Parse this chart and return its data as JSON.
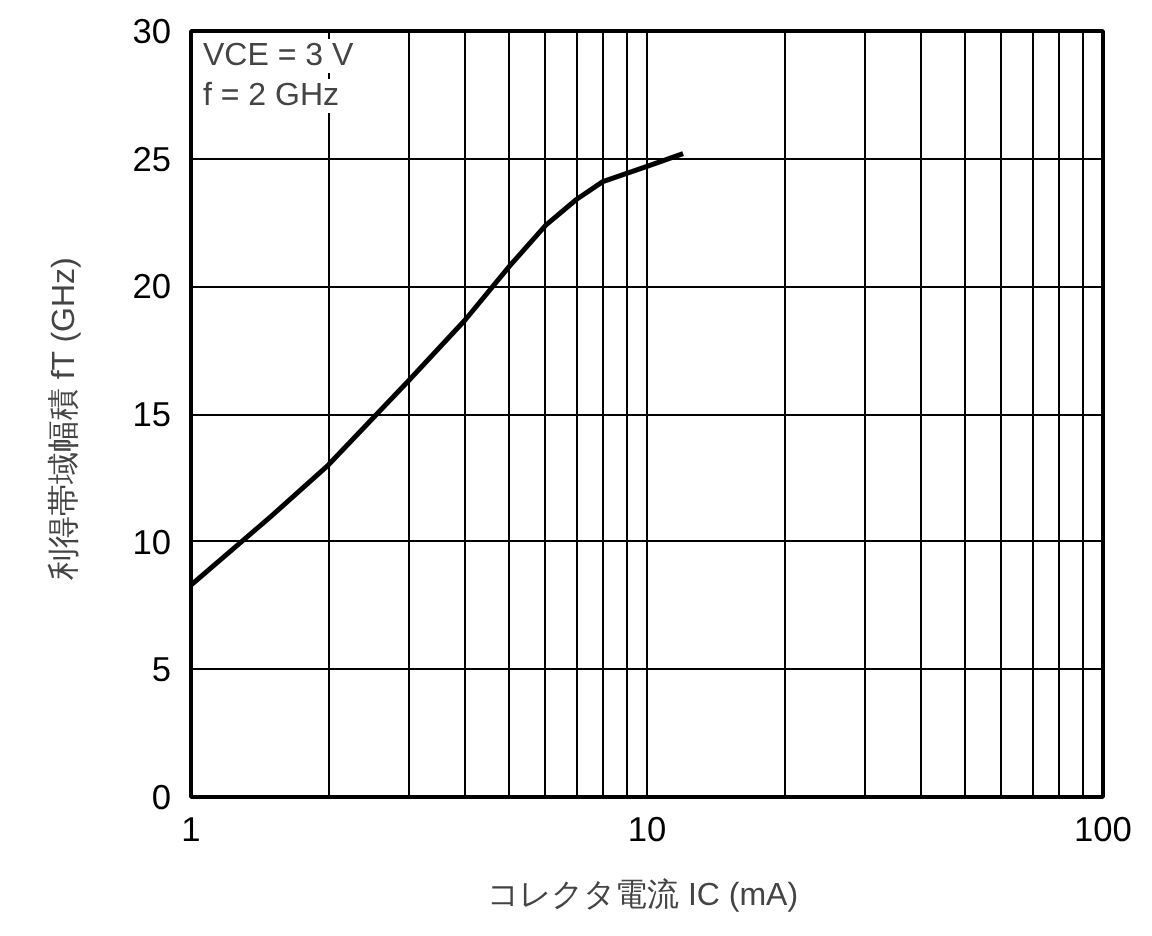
{
  "chart_data": {
    "type": "line",
    "xlabel": "コレクタ電流  IC (mA)",
    "ylabel": "利得帯域幅積  fT (GHz)",
    "annotations": [
      "VCE = 3 V",
      "f = 2 GHz"
    ],
    "log": "x",
    "grid": true,
    "marker": "none",
    "line_style": "solid",
    "xlim": [
      1,
      100
    ],
    "ylim": [
      0,
      30
    ],
    "xticks": [
      1,
      {
        "value": 2,
        "label": null
      },
      {
        "value": 3,
        "label": null
      },
      {
        "value": 4,
        "label": null
      },
      {
        "value": 5,
        "label": null
      },
      {
        "value": 6,
        "label": null
      },
      {
        "value": 7,
        "label": null
      },
      {
        "value": 8,
        "label": null
      },
      {
        "value": 9,
        "label": null
      },
      10,
      {
        "value": 20,
        "label": null
      },
      {
        "value": 30,
        "label": null
      },
      {
        "value": 40,
        "label": null
      },
      {
        "value": 50,
        "label": null
      },
      {
        "value": 60,
        "label": null
      },
      {
        "value": 70,
        "label": null
      },
      {
        "value": 80,
        "label": null
      },
      {
        "value": 90,
        "label": null
      },
      100
    ],
    "yticks": [
      0,
      5,
      10,
      15,
      20,
      25,
      30
    ],
    "series": [
      {
        "color": "#000000",
        "x": [
          1,
          1.5,
          2,
          3,
          4,
          5,
          6,
          7,
          8,
          10,
          12
        ],
        "values": [
          8.3,
          11.0,
          13.0,
          16.3,
          18.7,
          20.8,
          22.4,
          23.4,
          24.1,
          24.7,
          25.2
        ]
      }
    ]
  }
}
